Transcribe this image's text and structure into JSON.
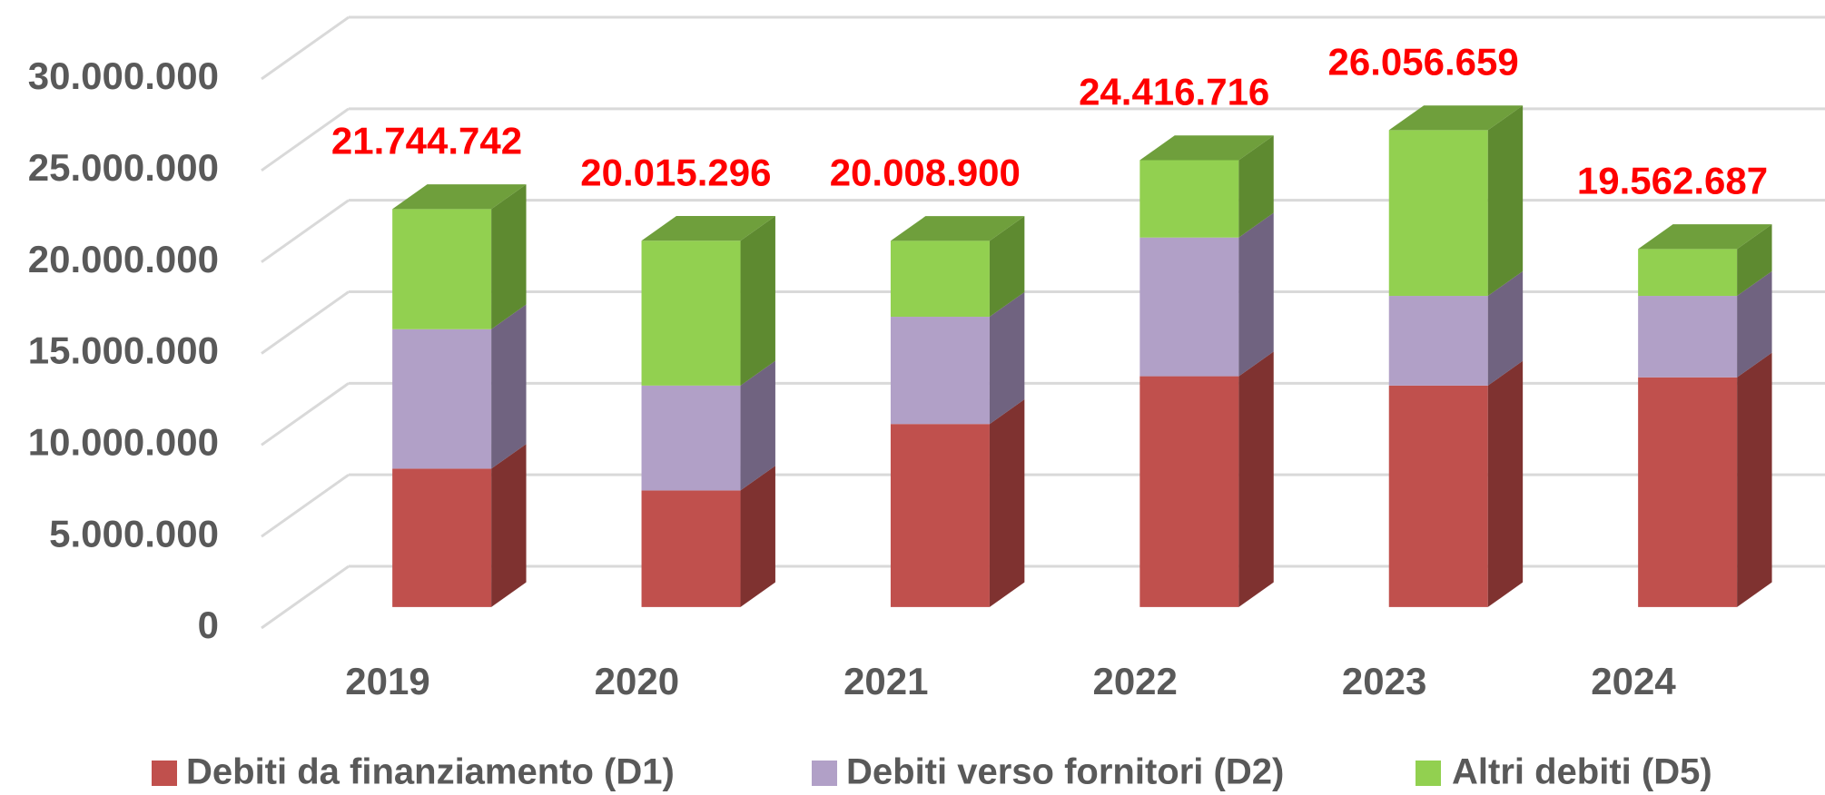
{
  "chart_data": {
    "type": "bar3d_stacked",
    "categories": [
      "2019",
      "2020",
      "2021",
      "2022",
      "2023",
      "2024"
    ],
    "series": [
      {
        "name": "Debiti da finanziamento (D1)",
        "color": "#c0504d",
        "side_color": "#7f3230",
        "top_color": "#d9736f",
        "values": [
          7560000,
          6370000,
          10000000,
          12610000,
          12100000,
          12550000
        ]
      },
      {
        "name": "Debiti verso fornitori (D2)",
        "color": "#b1a0c7",
        "side_color": "#706380",
        "top_color": "#c9bcd9",
        "values": [
          7620000,
          5730000,
          5860000,
          7580000,
          4900000,
          4450000
        ]
      },
      {
        "name": "Altri debiti (D5)",
        "color": "#92d050",
        "side_color": "#5e8a30",
        "top_color": "#6f9f3c",
        "values": [
          6564742,
          7915296,
          4148900,
          4226716,
          9056659,
          2562687
        ]
      }
    ],
    "totals": [
      21744742,
      20015296,
      20008900,
      24416716,
      26056659,
      19562687
    ],
    "totals_value_labels": [
      "21.744.742",
      "20.015.296",
      "20.008.900",
      "24.416.716",
      "26.056.659",
      "19.562.687"
    ],
    "totals_color": "#ff0000",
    "ylim": [
      0,
      30000000
    ],
    "yticks": [
      0,
      {
        "value": 5000000,
        "label": "5.000.000"
      },
      {
        "value": 10000000,
        "label": "10.000.000"
      },
      {
        "value": 15000000,
        "label": "15.000.000"
      },
      {
        "value": 20000000,
        "label": "20.000.000"
      },
      {
        "value": 25000000,
        "label": "25.000.000"
      },
      {
        "value": 30000000,
        "label": "30.000.000"
      }
    ],
    "grid": true,
    "legend": "bottom"
  }
}
